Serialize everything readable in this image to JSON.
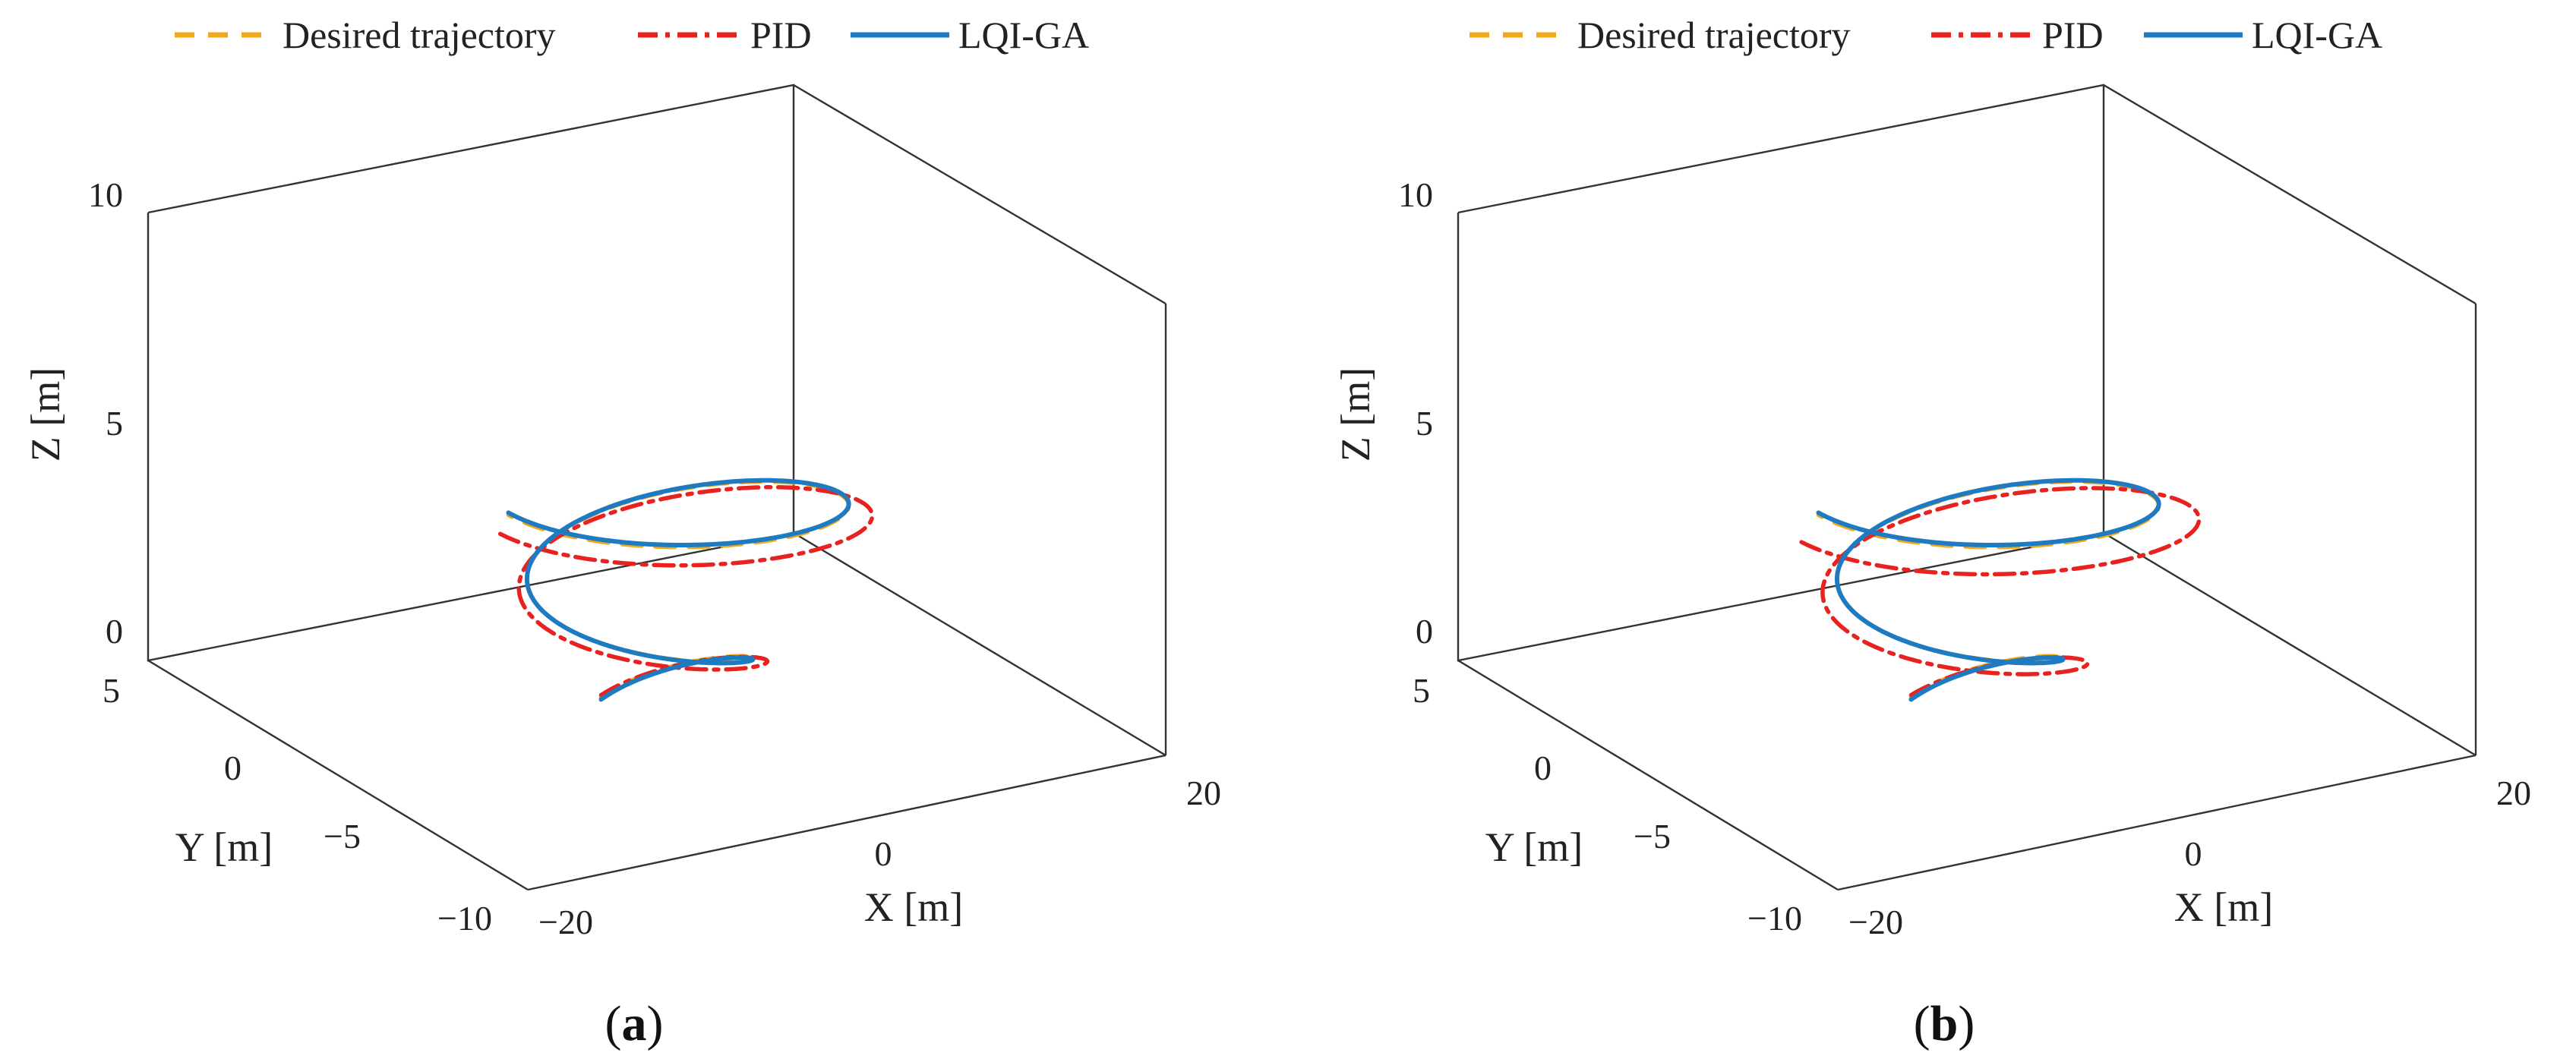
{
  "chart_data": [
    {
      "type": "line3d",
      "panel": "a",
      "caption_letter": "a",
      "legend": {
        "placement": "top",
        "entries": [
          "Desired trajectory",
          "PID",
          "LQI-GA"
        ]
      },
      "axes": {
        "x": {
          "label": "X [m]",
          "range": [
            -20,
            20
          ],
          "ticks": [
            -20,
            0,
            20
          ],
          "tick_labels": [
            "−20",
            "0",
            "20"
          ]
        },
        "y": {
          "label": "Y [m]",
          "range": [
            -10,
            5
          ],
          "ticks": [
            -10,
            -5,
            0,
            5
          ],
          "tick_labels": [
            "−10",
            "−5",
            "0",
            "5"
          ]
        },
        "z": {
          "label": "Z [m]",
          "range": [
            0,
            10
          ],
          "ticks": [
            0,
            5,
            10
          ],
          "tick_labels": [
            "0",
            "5",
            "10"
          ]
        }
      },
      "grid": false,
      "series": [
        {
          "name": "Desired trajectory",
          "color": "#f2a81d",
          "dash": "dashed",
          "model": {
            "x_start": 0,
            "x_center": -3.5,
            "x_amplitude": 7.8,
            "y_offset": -2.5,
            "y_amplitude": -7,
            "z_range": [
              0.5,
              6.6
            ],
            "turns": 1.75
          }
        },
        {
          "name": "PID",
          "color": "#e8231f",
          "dash": "dashdot",
          "model": {
            "x_start": 0,
            "x_center": -3.5,
            "x_amplitude": 8.6,
            "y_offset": -2.5,
            "y_amplitude": -7.6,
            "z_range": [
              0.55,
              6.4
            ],
            "turns": 1.75
          }
        },
        {
          "name": "LQI-GA",
          "color": "#1f7bc1",
          "dash": "solid",
          "model": {
            "x_start": 0,
            "x_center": -3.5,
            "x_amplitude": 7.8,
            "y_offset": -2.5,
            "y_amplitude": -7,
            "z_range": [
              0.45,
              6.65
            ],
            "turns": 1.75
          }
        }
      ]
    },
    {
      "type": "line3d",
      "panel": "b",
      "caption_letter": "b",
      "legend": {
        "placement": "top",
        "entries": [
          "Desired trajectory",
          "PID",
          "LQI-GA"
        ]
      },
      "axes": {
        "x": {
          "label": "X [m]",
          "range": [
            -20,
            20
          ],
          "ticks": [
            -20,
            0,
            20
          ],
          "tick_labels": [
            "−20",
            "0",
            "20"
          ]
        },
        "y": {
          "label": "Y [m]",
          "range": [
            -10,
            5
          ],
          "ticks": [
            -10,
            -5,
            0,
            5
          ],
          "tick_labels": [
            "−10",
            "−5",
            "0",
            "5"
          ]
        },
        "z": {
          "label": "Z [m]",
          "range": [
            0,
            10
          ],
          "ticks": [
            0,
            5,
            10
          ],
          "tick_labels": [
            "0",
            "5",
            "10"
          ]
        }
      },
      "grid": false,
      "series": [
        {
          "name": "Desired trajectory",
          "color": "#f2a81d",
          "dash": "dashed",
          "model": {
            "x_start": 0,
            "x_center": -3.5,
            "x_amplitude": 7.8,
            "y_offset": -2.5,
            "y_amplitude": -7,
            "z_range": [
              0.5,
              6.6
            ],
            "turns": 1.75
          }
        },
        {
          "name": "PID",
          "color": "#e8231f",
          "dash": "dashdot",
          "model": {
            "x_start": 0,
            "x_center": -3.5,
            "x_amplitude": 9.2,
            "y_offset": -2.5,
            "y_amplitude": -8.0,
            "z_range": [
              0.55,
              6.35
            ],
            "turns": 1.75
          }
        },
        {
          "name": "LQI-GA",
          "color": "#1f7bc1",
          "dash": "solid",
          "model": {
            "x_start": 0,
            "x_center": -3.5,
            "x_amplitude": 7.8,
            "y_offset": -2.5,
            "y_amplitude": -7,
            "z_range": [
              0.45,
              6.65
            ],
            "turns": 1.75
          }
        }
      ]
    }
  ]
}
